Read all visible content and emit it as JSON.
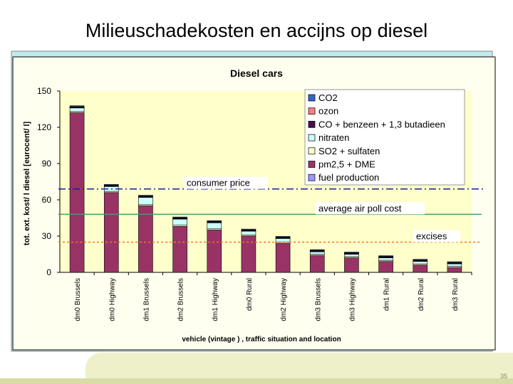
{
  "slide": {
    "title": "Milieuschadekosten en accijns op diesel",
    "page_number": "35"
  },
  "colors": {
    "panel_bg": "#fffff0",
    "plot_bg": "#ffffcc",
    "bar": "#993366",
    "bar_top": "#ccffff",
    "consumer_price": "#1a1aa0",
    "avg_air_poll": "#4a9a6a",
    "excises": "#f07820"
  },
  "chart_data": {
    "type": "bar",
    "title": "Diesel cars",
    "xlabel": "vehicle (vintage ) , traffic situation and location",
    "ylabel": "tot. ext. kost/ l diesel [eurocent/ l]",
    "ylim": [
      0,
      150
    ],
    "yticks": [
      0,
      30,
      60,
      90,
      120,
      150
    ],
    "grid": false,
    "legend_position": "top-right",
    "stacked": true,
    "categories": [
      "dm0 Brussels",
      "dm0 Highway",
      "dm1 Brussels",
      "dm2 Brussels",
      "dm1 Highway",
      "dm0 Rural",
      "dm2 Highway",
      "dm3 Brussels",
      "dm3 Highway",
      "dm1 Rural",
      "dm2 Rural",
      "dm3 Rural"
    ],
    "series": [
      {
        "name": "CO2",
        "color": "#3366cc",
        "values": [
          0.5,
          0.5,
          0.5,
          0.5,
          0.5,
          0.5,
          0.5,
          0.5,
          0.5,
          0.5,
          0.5,
          0.5
        ]
      },
      {
        "name": "ozon",
        "color": "#ff8080",
        "values": [
          0.3,
          0.3,
          0.3,
          0.3,
          0.3,
          0.3,
          0.3,
          0.3,
          0.3,
          0.3,
          0.3,
          0.3
        ]
      },
      {
        "name": "CO + benzeen + 1,3 butadieen",
        "color": "#4b0f4b",
        "values": [
          0.5,
          0.5,
          0.5,
          0.5,
          0.5,
          0.5,
          0.5,
          0.5,
          0.5,
          0.5,
          0.5,
          0.5
        ]
      },
      {
        "name": "nitraten",
        "color": "#ccffff",
        "values": [
          3,
          4,
          6,
          5,
          5,
          3,
          3,
          2,
          2,
          2,
          2,
          2
        ]
      },
      {
        "name": "SO2 + sulfaten",
        "color": "#ffffcc",
        "values": [
          1,
          1,
          1,
          1,
          1,
          1,
          1,
          1,
          1,
          1,
          1,
          1
        ]
      },
      {
        "name": "pm2,5 + DME",
        "color": "#993366",
        "values": [
          132,
          66,
          55,
          38,
          35,
          30,
          24,
          14,
          12,
          9,
          6,
          4
        ]
      },
      {
        "name": "fuel production",
        "color": "#9999ff",
        "values": [
          0.5,
          0.5,
          0.5,
          0.5,
          0.5,
          0.5,
          0.5,
          0.5,
          0.5,
          0.5,
          0.5,
          0.5
        ]
      }
    ],
    "reference_lines": [
      {
        "label": "consumer price",
        "value": 69,
        "style": "dash-dot",
        "color": "#1a1aa0"
      },
      {
        "label": "average  air poll cost",
        "value": 48,
        "style": "solid",
        "color": "#4a9a6a"
      },
      {
        "label": "excises",
        "value": 25,
        "style": "dotted",
        "color": "#f07820"
      }
    ]
  }
}
